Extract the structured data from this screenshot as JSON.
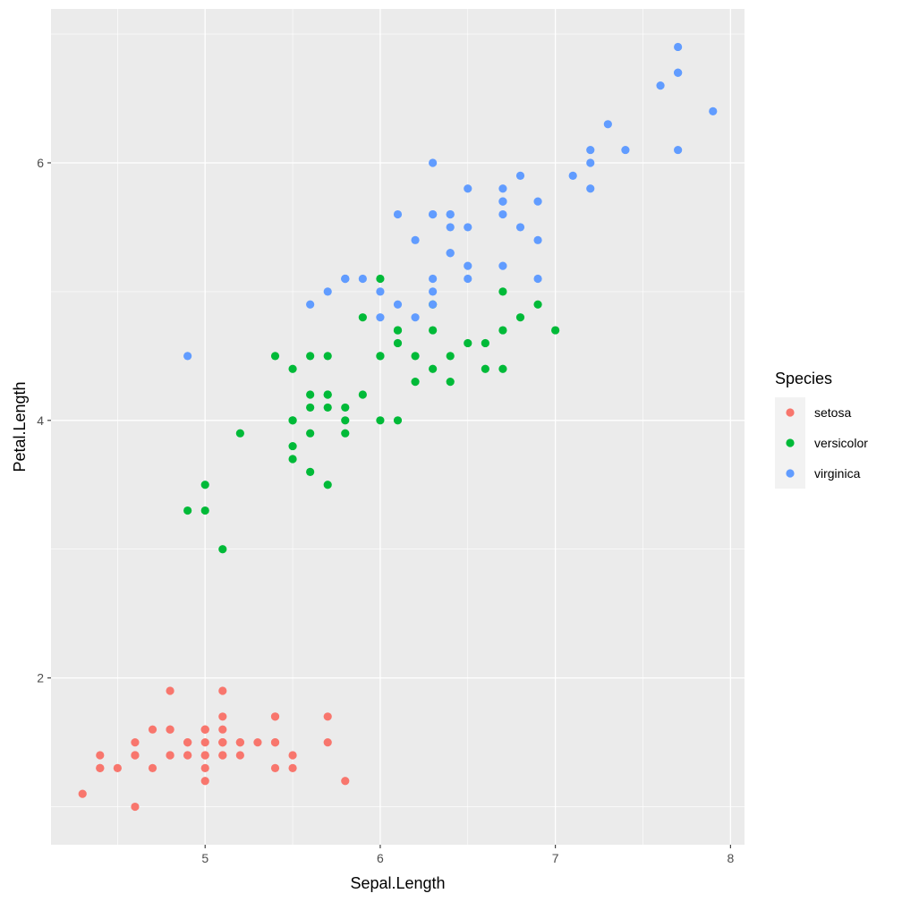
{
  "chart_data": {
    "type": "scatter",
    "xlabel": "Sepal.Length",
    "ylabel": "Petal.Length",
    "xlim": [
      4.12,
      8.08
    ],
    "ylim": [
      0.705,
      7.195
    ],
    "x_ticks": [
      5,
      6,
      7,
      8
    ],
    "y_ticks": [
      2,
      4,
      6
    ],
    "x_minor": [
      4.5,
      5.5,
      6.5,
      7.5
    ],
    "y_minor": [
      1,
      3,
      5,
      7
    ],
    "grid": true,
    "background": "#EBEBEB",
    "legend": {
      "title": "Species",
      "placement": "right",
      "entries": [
        "setosa",
        "versicolor",
        "virginica"
      ]
    },
    "series": [
      {
        "name": "setosa",
        "color": "#F8766D",
        "points": [
          [
            5.1,
            1.4
          ],
          [
            4.9,
            1.4
          ],
          [
            4.7,
            1.3
          ],
          [
            4.6,
            1.5
          ],
          [
            5.0,
            1.4
          ],
          [
            5.4,
            1.7
          ],
          [
            4.6,
            1.4
          ],
          [
            5.0,
            1.5
          ],
          [
            4.4,
            1.4
          ],
          [
            4.9,
            1.5
          ],
          [
            5.4,
            1.5
          ],
          [
            4.8,
            1.6
          ],
          [
            4.8,
            1.4
          ],
          [
            4.3,
            1.1
          ],
          [
            5.8,
            1.2
          ],
          [
            5.7,
            1.5
          ],
          [
            5.4,
            1.3
          ],
          [
            5.1,
            1.4
          ],
          [
            5.7,
            1.7
          ],
          [
            5.1,
            1.5
          ],
          [
            5.4,
            1.7
          ],
          [
            5.1,
            1.5
          ],
          [
            4.6,
            1.0
          ],
          [
            5.1,
            1.7
          ],
          [
            4.8,
            1.9
          ],
          [
            5.0,
            1.6
          ],
          [
            5.0,
            1.6
          ],
          [
            5.2,
            1.5
          ],
          [
            5.2,
            1.4
          ],
          [
            4.7,
            1.6
          ],
          [
            4.8,
            1.6
          ],
          [
            5.4,
            1.5
          ],
          [
            5.2,
            1.5
          ],
          [
            5.5,
            1.4
          ],
          [
            4.9,
            1.5
          ],
          [
            5.0,
            1.2
          ],
          [
            5.5,
            1.3
          ],
          [
            4.9,
            1.4
          ],
          [
            4.4,
            1.3
          ],
          [
            5.1,
            1.5
          ],
          [
            5.0,
            1.3
          ],
          [
            4.5,
            1.3
          ],
          [
            4.4,
            1.3
          ],
          [
            5.0,
            1.6
          ],
          [
            5.1,
            1.9
          ],
          [
            4.8,
            1.4
          ],
          [
            5.1,
            1.6
          ],
          [
            4.6,
            1.4
          ],
          [
            5.3,
            1.5
          ],
          [
            5.0,
            1.4
          ]
        ]
      },
      {
        "name": "versicolor",
        "color": "#00BA38",
        "points": [
          [
            7.0,
            4.7
          ],
          [
            6.4,
            4.5
          ],
          [
            6.9,
            4.9
          ],
          [
            5.5,
            4.0
          ],
          [
            6.5,
            4.6
          ],
          [
            5.7,
            4.5
          ],
          [
            6.3,
            4.7
          ],
          [
            4.9,
            3.3
          ],
          [
            6.6,
            4.6
          ],
          [
            5.2,
            3.9
          ],
          [
            5.0,
            3.5
          ],
          [
            5.9,
            4.2
          ],
          [
            6.0,
            4.0
          ],
          [
            6.1,
            4.7
          ],
          [
            5.6,
            3.6
          ],
          [
            6.7,
            4.4
          ],
          [
            5.6,
            4.5
          ],
          [
            5.8,
            4.1
          ],
          [
            6.2,
            4.5
          ],
          [
            5.6,
            3.9
          ],
          [
            5.9,
            4.8
          ],
          [
            6.1,
            4.0
          ],
          [
            6.3,
            4.9
          ],
          [
            6.1,
            4.7
          ],
          [
            6.4,
            4.3
          ],
          [
            6.6,
            4.4
          ],
          [
            6.8,
            4.8
          ],
          [
            6.7,
            5.0
          ],
          [
            6.0,
            4.5
          ],
          [
            5.7,
            3.5
          ],
          [
            5.5,
            3.8
          ],
          [
            5.5,
            3.7
          ],
          [
            5.8,
            3.9
          ],
          [
            6.0,
            5.1
          ],
          [
            5.4,
            4.5
          ],
          [
            6.0,
            4.5
          ],
          [
            6.7,
            4.7
          ],
          [
            6.3,
            4.4
          ],
          [
            5.6,
            4.1
          ],
          [
            5.5,
            4.0
          ],
          [
            5.5,
            4.4
          ],
          [
            6.1,
            4.6
          ],
          [
            5.8,
            4.0
          ],
          [
            5.0,
            3.3
          ],
          [
            5.6,
            4.2
          ],
          [
            5.7,
            4.2
          ],
          [
            5.7,
            4.2
          ],
          [
            6.2,
            4.3
          ],
          [
            5.1,
            3.0
          ],
          [
            5.7,
            4.1
          ]
        ]
      },
      {
        "name": "virginica",
        "color": "#619CFF",
        "points": [
          [
            6.3,
            6.0
          ],
          [
            5.8,
            5.1
          ],
          [
            7.1,
            5.9
          ],
          [
            6.3,
            5.6
          ],
          [
            6.5,
            5.8
          ],
          [
            7.6,
            6.6
          ],
          [
            4.9,
            4.5
          ],
          [
            7.3,
            6.3
          ],
          [
            6.7,
            5.8
          ],
          [
            7.2,
            6.1
          ],
          [
            6.5,
            5.1
          ],
          [
            6.4,
            5.3
          ],
          [
            6.8,
            5.5
          ],
          [
            5.7,
            5.0
          ],
          [
            5.8,
            5.1
          ],
          [
            6.4,
            5.3
          ],
          [
            6.5,
            5.5
          ],
          [
            7.7,
            6.7
          ],
          [
            7.7,
            6.9
          ],
          [
            6.0,
            5.0
          ],
          [
            6.9,
            5.7
          ],
          [
            5.6,
            4.9
          ],
          [
            7.7,
            6.7
          ],
          [
            6.3,
            4.9
          ],
          [
            6.7,
            5.7
          ],
          [
            7.2,
            6.0
          ],
          [
            6.2,
            4.8
          ],
          [
            6.1,
            4.9
          ],
          [
            6.4,
            5.6
          ],
          [
            7.2,
            5.8
          ],
          [
            7.4,
            6.1
          ],
          [
            7.9,
            6.4
          ],
          [
            6.4,
            5.6
          ],
          [
            6.3,
            5.1
          ],
          [
            6.1,
            5.6
          ],
          [
            7.7,
            6.1
          ],
          [
            6.3,
            5.6
          ],
          [
            6.4,
            5.5
          ],
          [
            6.0,
            4.8
          ],
          [
            6.9,
            5.4
          ],
          [
            6.7,
            5.6
          ],
          [
            6.9,
            5.1
          ],
          [
            5.8,
            5.1
          ],
          [
            6.8,
            5.9
          ],
          [
            6.7,
            5.7
          ],
          [
            6.7,
            5.2
          ],
          [
            6.3,
            5.0
          ],
          [
            6.5,
            5.2
          ],
          [
            6.2,
            5.4
          ],
          [
            5.9,
            5.1
          ]
        ]
      }
    ]
  }
}
